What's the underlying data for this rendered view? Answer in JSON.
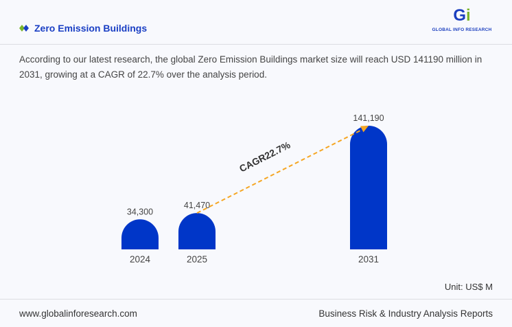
{
  "header": {
    "title": "Zero Emission Buildings",
    "logo_text": "GLOBAL INFO RESEARCH",
    "logo_mark": "Gi"
  },
  "description": "According to our latest research, the global Zero Emission Buildings market size will reach USD 141190 million in 2031, growing at a CAGR of 22.7% over the analysis period.",
  "chart_data": {
    "type": "bar",
    "categories": [
      "2024",
      "2025",
      "2031"
    ],
    "values": [
      34300,
      41470,
      141190
    ],
    "value_labels": [
      "34,300",
      "41,470",
      "141,190"
    ],
    "annotation": "CAGR22.7%",
    "unit": "Unit: US$ M",
    "bar_color": "#0036c8",
    "arrow_color": "#f5a623",
    "ylim": [
      0,
      141190
    ]
  },
  "footer": {
    "website": "www.globalinforesearch.com",
    "tagline": "Business Risk & Industry Analysis Reports"
  }
}
